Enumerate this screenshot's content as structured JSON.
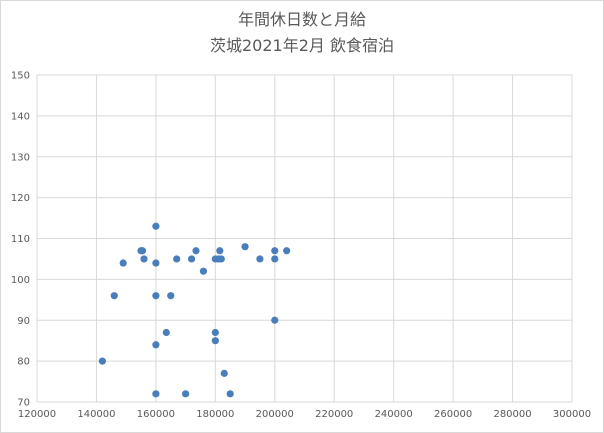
{
  "chart_data": {
    "type": "scatter",
    "title": "年間休日数と月給",
    "subtitle": "茨城2021年2月  飲食宿泊",
    "xlabel": "",
    "ylabel": "",
    "xlim": [
      120000,
      300000
    ],
    "ylim": [
      70,
      150
    ],
    "x_ticks": [
      "120000",
      "140000",
      "160000",
      "180000",
      "200000",
      "220000",
      "240000",
      "260000",
      "280000",
      "300000"
    ],
    "y_ticks": [
      "70",
      "80",
      "90",
      "100",
      "110",
      "120",
      "130",
      "140",
      "150"
    ],
    "grid": true,
    "legend": "none",
    "marker_color": "#4a7ebb",
    "points": [
      {
        "x": 142000,
        "y": 80
      },
      {
        "x": 146000,
        "y": 96
      },
      {
        "x": 149000,
        "y": 104
      },
      {
        "x": 155000,
        "y": 107
      },
      {
        "x": 155500,
        "y": 107
      },
      {
        "x": 156000,
        "y": 105
      },
      {
        "x": 160000,
        "y": 113
      },
      {
        "x": 160000,
        "y": 104
      },
      {
        "x": 160000,
        "y": 96
      },
      {
        "x": 160000,
        "y": 84
      },
      {
        "x": 160000,
        "y": 72
      },
      {
        "x": 163500,
        "y": 87
      },
      {
        "x": 165000,
        "y": 96
      },
      {
        "x": 167000,
        "y": 105
      },
      {
        "x": 170000,
        "y": 72
      },
      {
        "x": 172000,
        "y": 105
      },
      {
        "x": 173500,
        "y": 107
      },
      {
        "x": 176000,
        "y": 102
      },
      {
        "x": 180000,
        "y": 105
      },
      {
        "x": 180000,
        "y": 87
      },
      {
        "x": 180000,
        "y": 85
      },
      {
        "x": 181000,
        "y": 105
      },
      {
        "x": 181500,
        "y": 107
      },
      {
        "x": 182000,
        "y": 105
      },
      {
        "x": 183000,
        "y": 77
      },
      {
        "x": 185000,
        "y": 72
      },
      {
        "x": 190000,
        "y": 108
      },
      {
        "x": 195000,
        "y": 105
      },
      {
        "x": 200000,
        "y": 107
      },
      {
        "x": 200000,
        "y": 105
      },
      {
        "x": 200000,
        "y": 90
      },
      {
        "x": 204000,
        "y": 107
      }
    ]
  }
}
